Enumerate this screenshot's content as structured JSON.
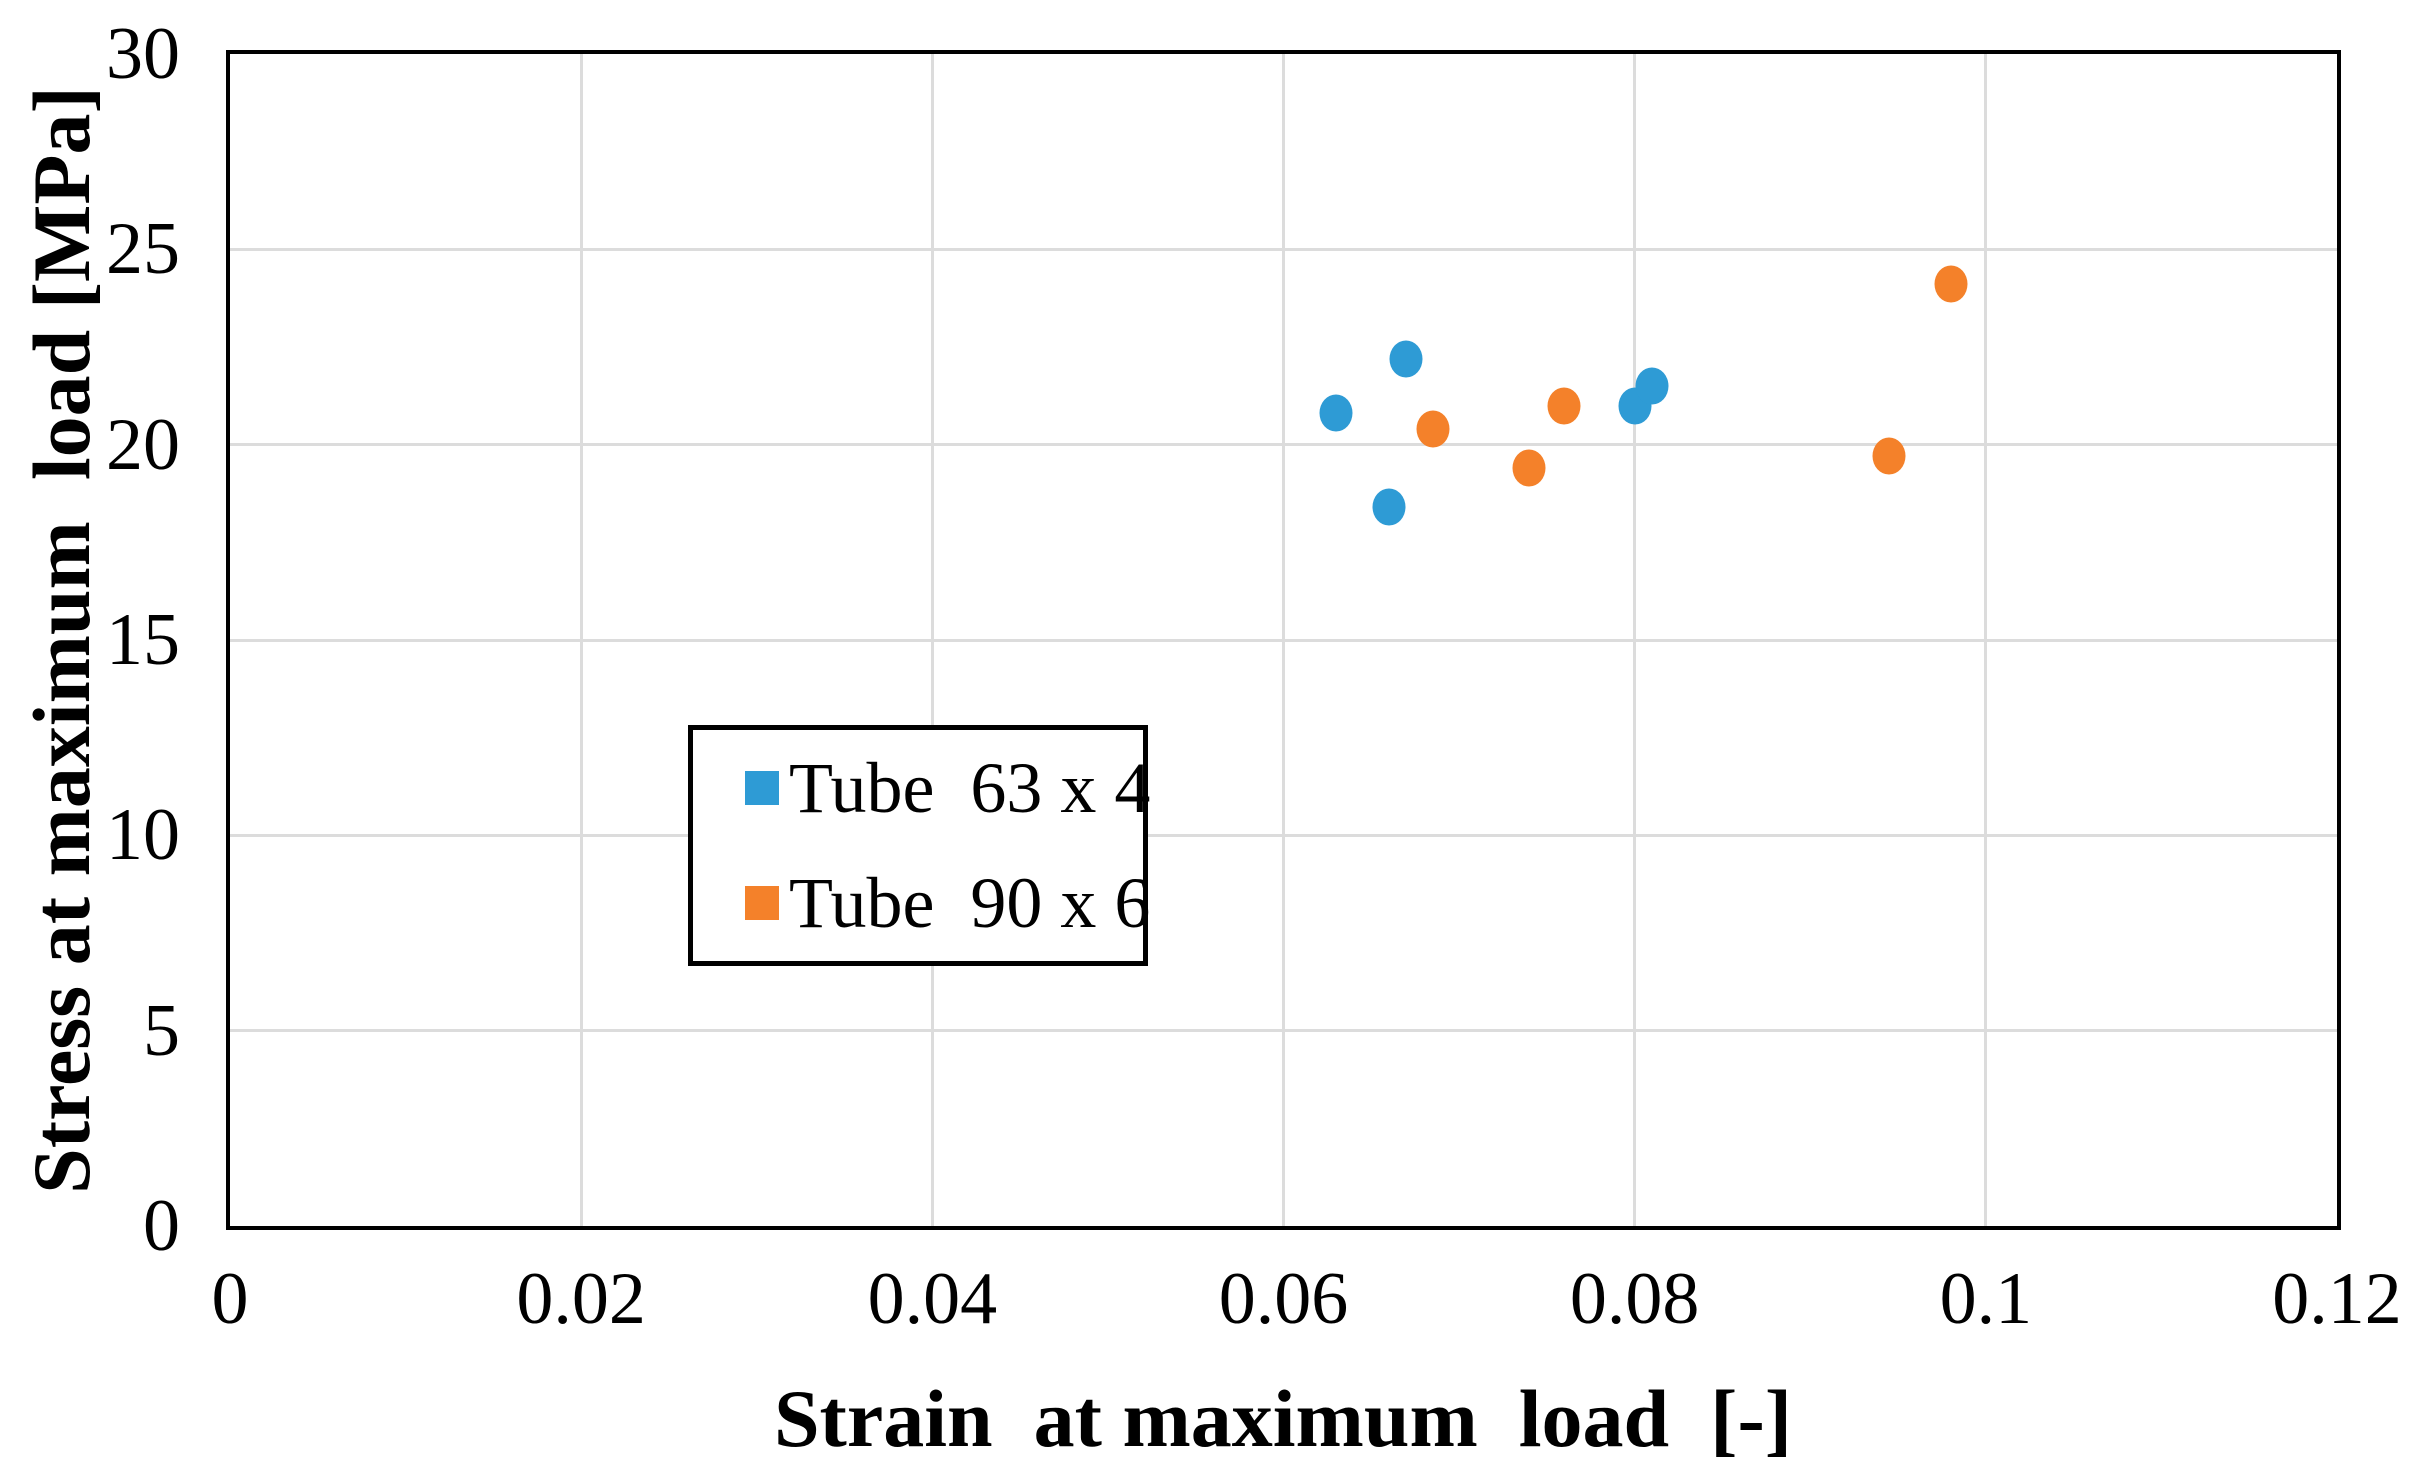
{
  "figure": {
    "background_color": "#FFFFFF",
    "text_color": "#000000",
    "gridline_color": "#DCDCDC",
    "axis_border_color": "#000000"
  },
  "chart_data": {
    "type": "scatter",
    "title": "",
    "xlabel": "Strain  at maximum  load  [-]",
    "ylabel": "Stress at maximum  load [MPa]",
    "xlim": [
      0,
      0.12
    ],
    "ylim": [
      0,
      30
    ],
    "x_ticks": [
      0,
      0.02,
      0.04,
      0.06,
      0.08,
      0.1,
      0.12
    ],
    "x_tick_labels": [
      "0",
      "0.02",
      "0.04",
      "0.06",
      "0.08",
      "0.1",
      "0.12"
    ],
    "y_ticks": [
      0,
      5,
      10,
      15,
      20,
      25,
      30
    ],
    "y_tick_labels": [
      "0",
      "5",
      "10",
      "15",
      "20",
      "25",
      "30"
    ],
    "grid": true,
    "legend_position": "inside-center-left",
    "series": [
      {
        "name": "Tube  63 x 4",
        "color": "#2E9BD5",
        "marker": "circle",
        "points": [
          [
            0.063,
            20.8
          ],
          [
            0.066,
            18.4
          ],
          [
            0.067,
            22.2
          ],
          [
            0.08,
            21.0
          ],
          [
            0.081,
            21.5
          ]
        ]
      },
      {
        "name": "Tube  90 x 6",
        "color": "#F4812A",
        "marker": "circle",
        "points": [
          [
            0.0685,
            20.4
          ],
          [
            0.074,
            19.4
          ],
          [
            0.076,
            21.0
          ],
          [
            0.0945,
            19.7
          ],
          [
            0.098,
            24.1
          ]
        ]
      }
    ]
  }
}
